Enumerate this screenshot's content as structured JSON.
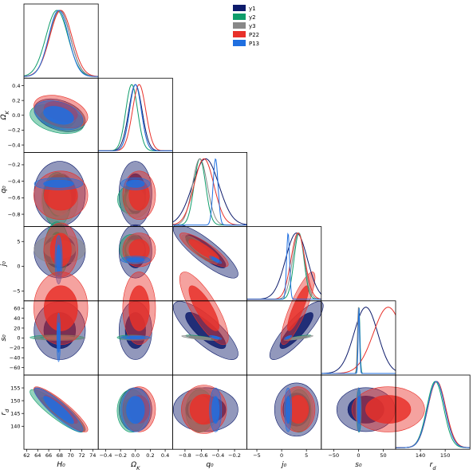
{
  "chart_data": {
    "type": "corner",
    "title": "",
    "parameters": [
      {
        "key": "H0",
        "label": "H₀",
        "range": [
          61.5,
          75
        ],
        "ticks": [
          62,
          64,
          66,
          68,
          70,
          72,
          74
        ]
      },
      {
        "key": "OmegaK",
        "label": "Ω_K",
        "range": [
          -0.5,
          0.5
        ],
        "ticks": [
          -0.4,
          -0.2,
          0.0,
          0.2,
          0.4
        ]
      },
      {
        "key": "q0",
        "label": "q₀",
        "range": [
          -0.95,
          -0.05
        ],
        "ticks": [
          -0.8,
          -0.6,
          -0.4,
          -0.2
        ]
      },
      {
        "key": "j0",
        "label": "j₀",
        "range": [
          -7,
          8
        ],
        "ticks": [
          -5,
          0,
          5
        ]
      },
      {
        "key": "s0",
        "label": "s₀",
        "range": [
          -75,
          75
        ],
        "ticks": [
          -50,
          0,
          50
        ]
      },
      {
        "key": "rd",
        "label": "r_d",
        "range": [
          130,
          160
        ],
        "ticks": [
          140,
          150
        ]
      }
    ],
    "row_ticks": {
      "OmegaK": [
        -0.4,
        -0.2,
        0.0,
        0.2,
        0.4
      ],
      "q0": [
        -0.8,
        -0.6,
        -0.4,
        -0.2
      ],
      "j0": [
        -5,
        0,
        5
      ],
      "s0": [
        -60,
        -40,
        -20,
        0,
        20,
        40,
        60
      ],
      "rd": [
        140,
        145,
        150,
        155
      ]
    },
    "row_ranges": {
      "OmegaK": [
        -0.5,
        0.5
      ],
      "q0": [
        -0.95,
        -0.05
      ],
      "j0": [
        -7,
        8
      ],
      "s0": [
        -75,
        75
      ],
      "rd": [
        131,
        160
      ]
    },
    "series": [
      {
        "name": "y1",
        "color": "#0d1b6b",
        "mean": [
          68.0,
          0.0,
          -0.55,
          3.0,
          15,
          146.5
        ],
        "sd": [
          1.9,
          0.09,
          0.16,
          2.2,
          24,
          3.5
        ]
      },
      {
        "name": "y2",
        "color": "#0f9d6b",
        "mean": [
          67.5,
          -0.05,
          -0.62,
          3.5,
          1,
          146.0
        ],
        "sd": [
          2.0,
          0.08,
          0.07,
          1.0,
          2,
          3.4
        ]
      },
      {
        "name": "y3",
        "color": "#888888",
        "mean": [
          68.0,
          0.0,
          -0.62,
          3.4,
          0,
          146.5
        ],
        "sd": [
          1.9,
          0.08,
          0.09,
          1.2,
          2,
          3.5
        ]
      },
      {
        "name": "P22",
        "color": "#e8312a",
        "mean": [
          68.2,
          0.05,
          -0.57,
          3.3,
          60,
          146.6
        ],
        "sd": [
          2.0,
          0.09,
          0.12,
          1.4,
          30,
          3.6
        ]
      },
      {
        "name": "P13",
        "color": "#1f6fe0",
        "mean": [
          67.8,
          0.0,
          -0.43,
          1.3,
          1,
          146.4
        ],
        "sd": [
          1.8,
          0.08,
          0.03,
          0.3,
          1.5,
          3.5
        ]
      }
    ],
    "legend": {
      "position": "top-right",
      "labels": [
        "y1",
        "y2",
        "y3",
        "P22",
        "P13"
      ]
    },
    "grid": false
  }
}
